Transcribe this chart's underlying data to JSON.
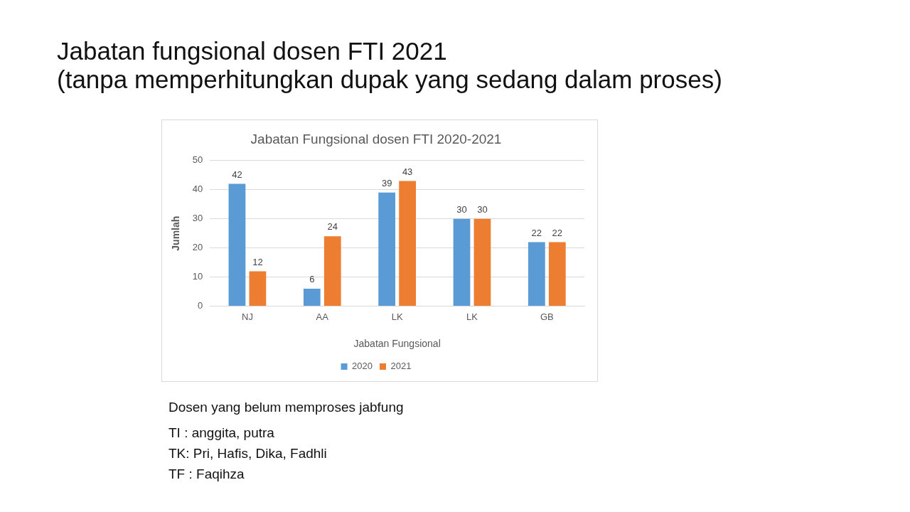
{
  "chart_data": {
    "type": "bar",
    "title": "Jabatan fungsional dosen FTI 2021\n(tanpa memperhitungkan dupak yang sedang dalam proses)",
    "subtitle": "Jabatan Fungsional dosen FTI 2020-2021",
    "xlabel": "Jabatan Fungsional",
    "ylabel": "Jumlah",
    "categories": [
      "NJ",
      "AA",
      "LK",
      "LK",
      "GB"
    ],
    "series": [
      {
        "name": "2020",
        "color": "#5b9bd5",
        "values": [
          42,
          6,
          39,
          30,
          22
        ]
      },
      {
        "name": "2021",
        "color": "#ed7d31",
        "values": [
          12,
          24,
          43,
          30,
          22
        ]
      }
    ],
    "ylim": [
      0,
      50
    ],
    "yticks": [
      0,
      10,
      20,
      30,
      40,
      50
    ],
    "grid": "y",
    "legend": "bottom",
    "data_labels": true,
    "annotations": [
      "Dosen yang belum memproses jabfung",
      "TI : anggita, putra",
      "TK: Pri, Hafis, Dika, Fadhli",
      "TF : Faqihza"
    ]
  }
}
